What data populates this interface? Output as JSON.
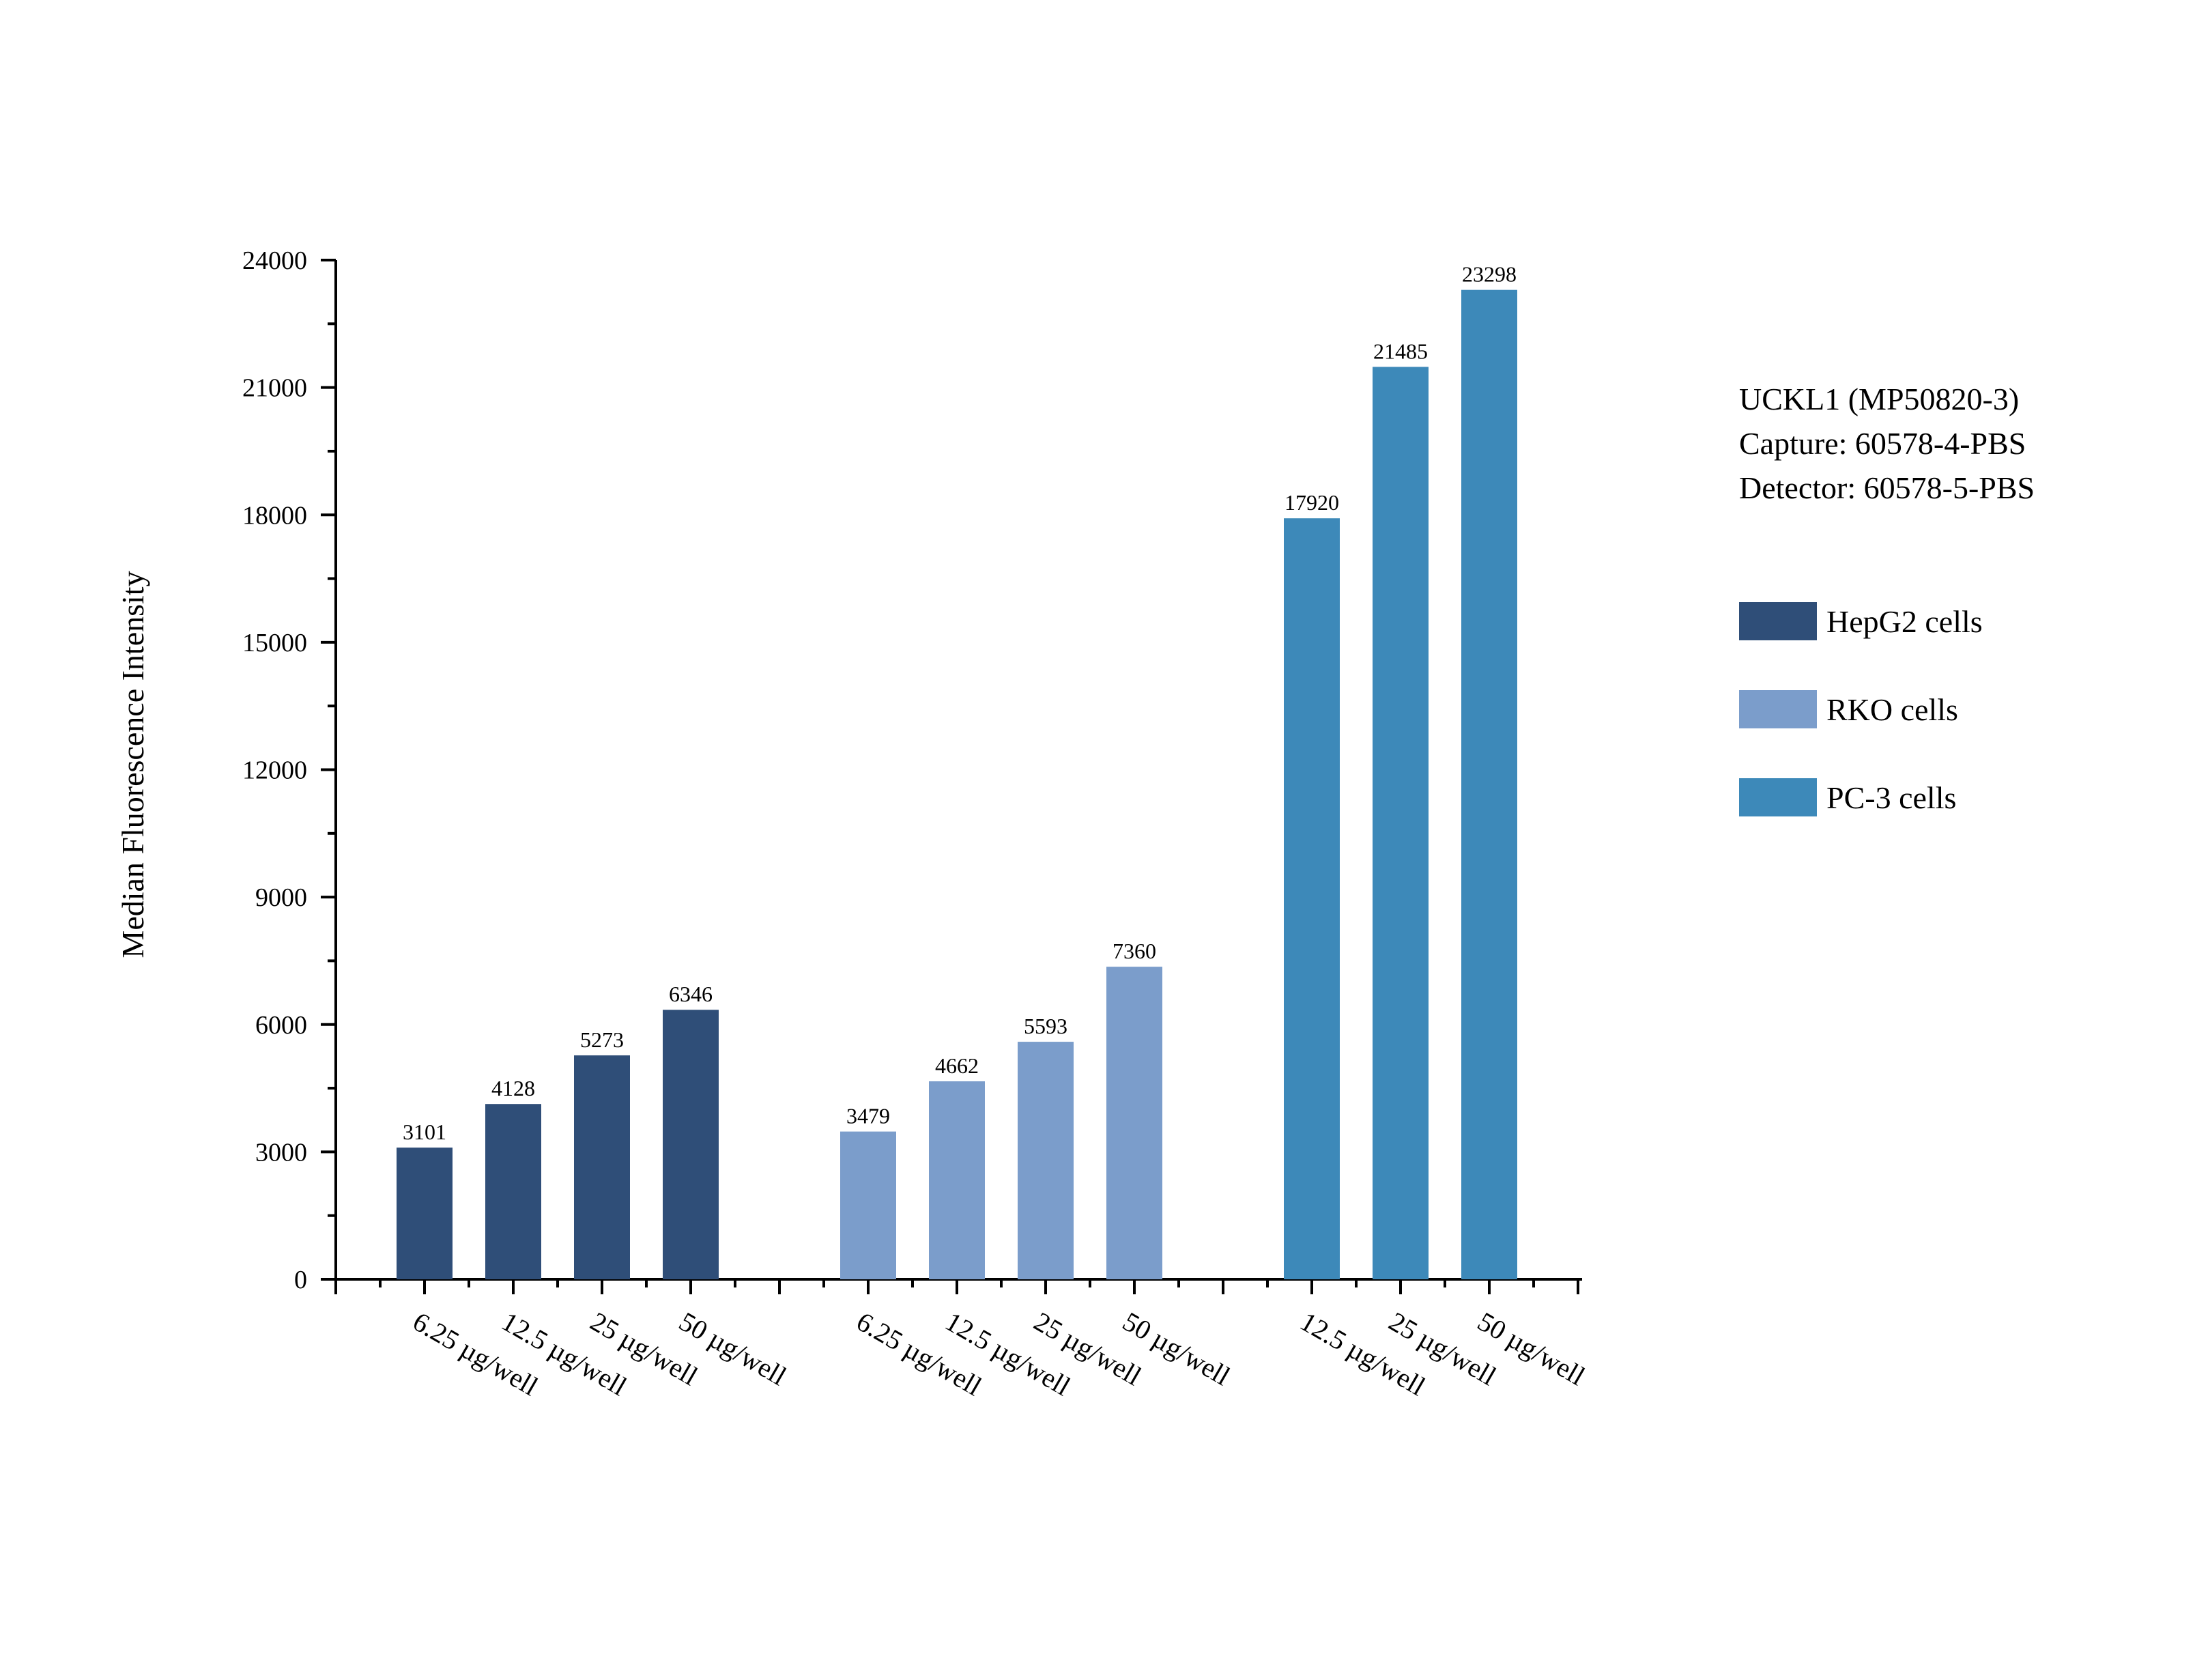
{
  "chart_data": {
    "type": "bar",
    "title": "",
    "xlabel": "",
    "ylabel": "Median Fluorescence Intensity",
    "ylim": [
      0,
      24000
    ],
    "yticks": [
      0,
      3000,
      6000,
      9000,
      12000,
      15000,
      18000,
      21000,
      24000
    ],
    "grid": false,
    "legend_position": "right",
    "annotation": [
      "UCKL1 (MP50820-3)",
      "Capture: 60578-4-PBS",
      "Detector: 60578-5-PBS"
    ],
    "series": [
      {
        "name": "HepG2 cells",
        "color": "#2f4e78",
        "categories": [
          "6.25 µg/well",
          "12.5 µg/well",
          "25 µg/well",
          "50 µg/well"
        ],
        "values": [
          3101,
          4128,
          5273,
          6346
        ]
      },
      {
        "name": "RKO cells",
        "color": "#7b9dcb",
        "categories": [
          "6.25 µg/well",
          "12.5 µg/well",
          "25 µg/well",
          "50 µg/well"
        ],
        "values": [
          3479,
          4662,
          5593,
          7360
        ]
      },
      {
        "name": "PC-3 cells",
        "color": "#3d89b9",
        "categories": [
          "12.5 µg/well",
          "25 µg/well",
          "50 µg/well"
        ],
        "values": [
          17920,
          21485,
          23298
        ]
      }
    ]
  }
}
